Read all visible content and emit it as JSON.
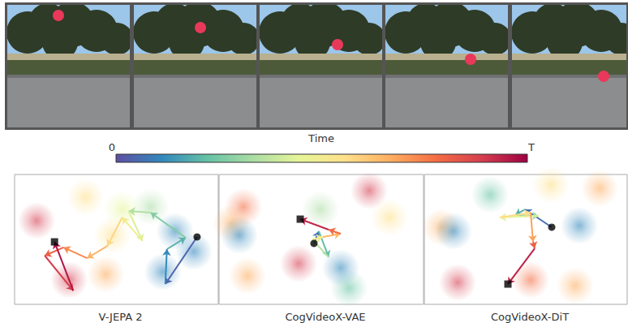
{
  "colorbar": {
    "label": "Time",
    "min_label": "0",
    "max_label": "T",
    "colors": [
      "#5e4fa2",
      "#3288bd",
      "#66c2a5",
      "#abdda4",
      "#e6f598",
      "#fee08b",
      "#fdae61",
      "#f46d43",
      "#d53e4f",
      "#9e0142"
    ]
  },
  "chart_data": [
    {
      "type": "trajectory",
      "title": "V-JEPA 2",
      "xlim": [
        0,
        100
      ],
      "ylim": [
        0,
        100
      ],
      "tick_labels": false,
      "grid": false,
      "x": [
        89.6,
        74.0,
        74.8,
        84.0,
        66.8,
        56.0,
        62.8,
        52.8,
        45.6,
        35.6,
        24.0,
        14.8,
        28.8,
        19.6
      ],
      "values": [
        51.9,
        15.6,
        42.5,
        51.3,
        70.6,
        71.9,
        48.8,
        66.9,
        45.0,
        35.6,
        43.8,
        37.5,
        10.6,
        48.1
      ],
      "clusters": [
        {
          "x": 10.8,
          "y": 64.4,
          "color": "#d53e4f"
        },
        {
          "x": 26.8,
          "y": 18.8,
          "color": "#d53e4f"
        },
        {
          "x": 44.8,
          "y": 23.1,
          "color": "#fdae61"
        },
        {
          "x": 48.0,
          "y": 53.1,
          "color": "#fee08b"
        },
        {
          "x": 66.8,
          "y": 75.0,
          "color": "#abdda4"
        },
        {
          "x": 78.8,
          "y": 56.3,
          "color": "#3288bd"
        },
        {
          "x": 72.8,
          "y": 25.0,
          "color": "#3288bd"
        },
        {
          "x": 34.8,
          "y": 82.5,
          "color": "#fee08b"
        },
        {
          "x": 52.8,
          "y": 73.1,
          "color": "#e6f598"
        },
        {
          "x": 88.0,
          "y": 40.6,
          "color": "#3288bd"
        }
      ]
    },
    {
      "type": "trajectory",
      "title": "CogVideoX-VAE",
      "xlim": [
        0,
        100
      ],
      "ylim": [
        0,
        100
      ],
      "tick_labels": false,
      "grid": false,
      "x": [
        46.4,
        48.8,
        53.6,
        45.6,
        50.8,
        59.5,
        53.6,
        39.7
      ],
      "values": [
        46.9,
        56.3,
        36.3,
        50.0,
        51.9,
        54.4,
        57.5,
        65.6
      ],
      "clusters": [
        {
          "x": 73.4,
          "y": 87.5,
          "color": "#d53e4f"
        },
        {
          "x": 11.9,
          "y": 75.0,
          "color": "#f46d43"
        },
        {
          "x": 6.0,
          "y": 62.5,
          "color": "#fdae61"
        },
        {
          "x": 49.6,
          "y": 73.1,
          "color": "#abdda4"
        },
        {
          "x": 63.5,
          "y": 12.5,
          "color": "#66c2a5"
        },
        {
          "x": 59.5,
          "y": 28.1,
          "color": "#3288bd"
        },
        {
          "x": 9.9,
          "y": 53.1,
          "color": "#3288bd"
        },
        {
          "x": 38.9,
          "y": 31.3,
          "color": "#d53e4f"
        },
        {
          "x": 83.3,
          "y": 66.9,
          "color": "#fee08b"
        },
        {
          "x": 13.9,
          "y": 21.9,
          "color": "#fdae61"
        }
      ]
    },
    {
      "type": "trajectory",
      "title": "CogVideoX-DiT",
      "xlim": [
        0,
        100
      ],
      "ylim": [
        0,
        100
      ],
      "tick_labels": false,
      "grid": false,
      "x": [
        62.8,
        49.6,
        44.8,
        56.4,
        37.2,
        52.4,
        53.6,
        54.4,
        41.2
      ],
      "values": [
        59.4,
        73.1,
        68.8,
        68.1,
        66.9,
        70.6,
        48.1,
        43.1,
        15.6
      ],
      "clusters": [
        {
          "x": 32.4,
          "y": 84.4,
          "color": "#66c2a5"
        },
        {
          "x": 8.4,
          "y": 59.4,
          "color": "#fdae61"
        },
        {
          "x": 14.4,
          "y": 56.3,
          "color": "#3288bd"
        },
        {
          "x": 76.4,
          "y": 60.6,
          "color": "#3288bd"
        },
        {
          "x": 16.4,
          "y": 16.9,
          "color": "#d53e4f"
        },
        {
          "x": 52.4,
          "y": 18.8,
          "color": "#f46d43"
        },
        {
          "x": 74.4,
          "y": 14.4,
          "color": "#fdae61"
        },
        {
          "x": 62.4,
          "y": 91.9,
          "color": "#fee08b"
        },
        {
          "x": 86.4,
          "y": 89.4,
          "color": "#fdae61"
        }
      ]
    }
  ]
}
